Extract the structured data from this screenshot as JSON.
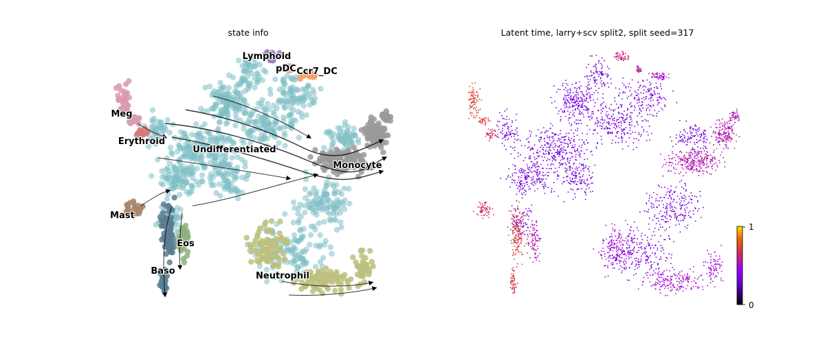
{
  "chart_data": [
    {
      "type": "scatter",
      "subtype": "embedding with velocity streamlines",
      "title": "state info",
      "axes_visible": false,
      "grid": false,
      "legend": "on data",
      "clusters": [
        {
          "name": "Lymphoid",
          "color": "#9a7fbf"
        },
        {
          "name": "pDC",
          "color": "#e7a9a6"
        },
        {
          "name": "Ccr7_DC",
          "color": "#f4a26a"
        },
        {
          "name": "Meg",
          "color": "#d99bb0"
        },
        {
          "name": "Erythroid",
          "color": "#d37a78"
        },
        {
          "name": "Undifferentiated",
          "color": "#7fbfc6"
        },
        {
          "name": "Monocyte",
          "color": "#9a9a9a"
        },
        {
          "name": "Mast",
          "color": "#a6876f"
        },
        {
          "name": "Eos",
          "color": "#8fb07e"
        },
        {
          "name": "Baso",
          "color": "#5a7d90"
        },
        {
          "name": "Neutrophil",
          "color": "#bdc07e"
        }
      ],
      "streamlines": {
        "color": "#000000",
        "arrowheads": true
      }
    },
    {
      "type": "scatter",
      "subtype": "embedding colored by continuous value",
      "title": "Latent time, larry+scv split2, split seed=317",
      "axes_visible": false,
      "grid": false,
      "colormap": "gnuplot",
      "colorbar": {
        "min": 0,
        "max": 1,
        "ticks": [
          "0",
          "1"
        ],
        "placement": "bottom-right"
      }
    }
  ]
}
